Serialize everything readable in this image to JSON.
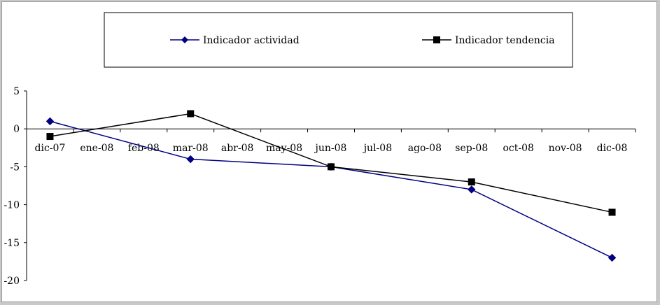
{
  "chart_data": {
    "type": "line",
    "categories": [
      "dic-07",
      "ene-08",
      "feb-08",
      "mar-08",
      "abr-08",
      "may-08",
      "jun-08",
      "jul-08",
      "ago-08",
      "sep-08",
      "oct-08",
      "nov-08",
      "dic-08"
    ],
    "y_ticks": [
      "5",
      "0",
      "-5",
      "-10",
      "-15",
      "-20"
    ],
    "ylim": [
      -20,
      5
    ],
    "grid": false,
    "legend_position": "top",
    "series": [
      {
        "name": "Indicador actividad",
        "color": "#000080",
        "marker": "diamond",
        "points": [
          {
            "x": "dic-07",
            "y": 1
          },
          {
            "x": "mar-08",
            "y": -4
          },
          {
            "x": "jun-08",
            "y": -5
          },
          {
            "x": "sep-08",
            "y": -8
          },
          {
            "x": "dic-08",
            "y": -17
          }
        ]
      },
      {
        "name": "Indicador tendencia",
        "color": "#000000",
        "marker": "square",
        "points": [
          {
            "x": "dic-07",
            "y": -1
          },
          {
            "x": "mar-08",
            "y": 2
          },
          {
            "x": "jun-08",
            "y": -5
          },
          {
            "x": "sep-08",
            "y": -7
          },
          {
            "x": "dic-08",
            "y": -11
          }
        ]
      }
    ]
  }
}
